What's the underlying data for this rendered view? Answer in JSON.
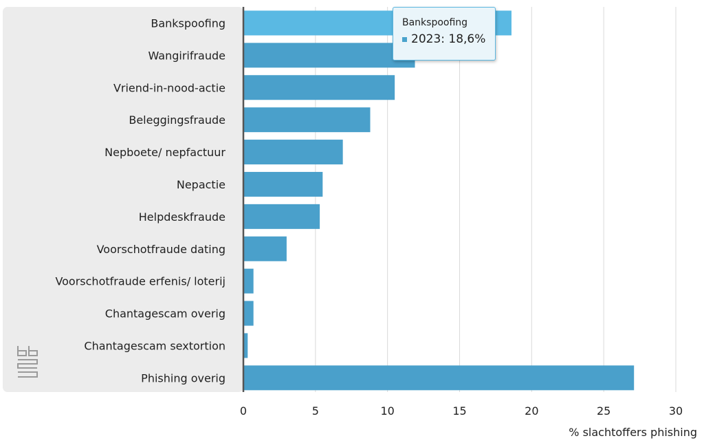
{
  "chart_data": {
    "type": "bar",
    "orientation": "horizontal",
    "categories": [
      "Bankspoofing",
      "Wangirifraude",
      "Vriend-in-nood-actie",
      "Beleggingsfraude",
      "Nepboete/ nepfactuur",
      "Nepactie",
      "Helpdeskfraude",
      "Voorschotfraude dating",
      "Voorschotfraude erfenis/ loterij",
      "Chantagescam overig",
      "Chantagescam sextortion",
      "Phishing overig"
    ],
    "series": [
      {
        "name": "2023",
        "values": [
          18.6,
          11.9,
          10.5,
          8.8,
          6.9,
          5.5,
          5.3,
          3.0,
          0.7,
          0.7,
          0.3,
          27.1
        ]
      }
    ],
    "xlabel": "% slachtoffers phishing",
    "ylabel": "",
    "xlim": [
      0,
      30
    ],
    "xticks": [
      0,
      5,
      10,
      15,
      20,
      25,
      30
    ],
    "grid": true,
    "highlighted_index": 0,
    "colors": {
      "bar": "#4aa0cb",
      "bar_highlight": "#5ab9e3",
      "grid": "#d9d9d9",
      "axis": "#555555",
      "label_panel": "#ececec"
    }
  },
  "tooltip": {
    "title": "Bankspoofing",
    "value_text": "2023: 18,6%"
  },
  "logo": {
    "icon": "cbs-logo-icon"
  }
}
